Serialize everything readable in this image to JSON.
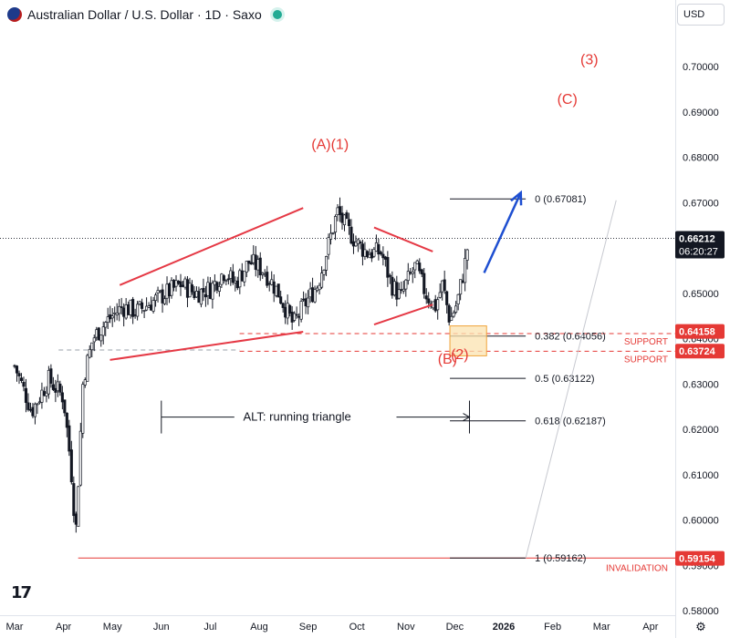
{
  "header": {
    "symbol_title": "Australian Dollar / U.S. Dollar · 1D · Saxo",
    "currency": "USD"
  },
  "icons": {
    "flag": "aud-usd-flag-icon",
    "live": "market-open-dot",
    "settings": "gear-icon",
    "logo": "tradingview-logo"
  },
  "colors": {
    "wave_labels": "#e53935",
    "trendlines": "#e53945",
    "arrow": "#1e4fd1",
    "support": "#e53935",
    "candles": "#131722",
    "last_price": "#131722",
    "box_fill": "#fbe3b0",
    "box_border": "#f0a33a"
  },
  "chart_data": {
    "type": "candlestick",
    "symbol": "Australian Dollar / U.S. Dollar",
    "timeframe": "1D",
    "y_range": [
      0.575,
      0.705
    ],
    "y_ticks": [
      "0.70000",
      "0.69000",
      "0.68000",
      "0.67000",
      "0.66000",
      "0.65000",
      "0.64000",
      "0.63000",
      "0.62000",
      "0.61000",
      "0.60000",
      "0.59000",
      "0.58000"
    ],
    "y_tick_values": [
      0.7,
      0.69,
      0.68,
      0.67,
      0.66,
      0.65,
      0.64,
      0.63,
      0.62,
      0.61,
      0.6,
      0.59,
      0.58
    ],
    "x_ticks": [
      "Mar",
      "Apr",
      "May",
      "Jun",
      "Jul",
      "Aug",
      "Sep",
      "Oct",
      "Nov",
      "Dec",
      "2026",
      "Feb",
      "Mar",
      "Apr"
    ],
    "x_tick_months": [
      2,
      3,
      4,
      5,
      6,
      7,
      8,
      9,
      10,
      11,
      12,
      13,
      14,
      15
    ],
    "last_price": "0.66212",
    "last_price_value": 0.66212,
    "countdown": "06:20:27",
    "price_tags": [
      {
        "text": "0.64158",
        "value": 0.64158
      },
      {
        "text": "0.63724",
        "value": 0.63724
      },
      {
        "text": "0.59154",
        "value": 0.59154
      }
    ],
    "ohlc_anchors": [
      [
        2.0,
        0.634
      ],
      [
        2.35,
        0.624
      ],
      [
        2.7,
        0.631
      ],
      [
        3.0,
        0.627
      ],
      [
        3.15,
        0.612
      ],
      [
        3.25,
        0.597
      ],
      [
        3.4,
        0.631
      ],
      [
        3.6,
        0.64
      ],
      [
        3.9,
        0.644
      ],
      [
        4.2,
        0.647
      ],
      [
        4.5,
        0.646
      ],
      [
        4.8,
        0.648
      ],
      [
        5.1,
        0.65
      ],
      [
        5.4,
        0.652
      ],
      [
        5.7,
        0.65
      ],
      [
        6.0,
        0.651
      ],
      [
        6.3,
        0.655
      ],
      [
        6.5,
        0.652
      ],
      [
        6.8,
        0.657
      ],
      [
        7.1,
        0.655
      ],
      [
        7.4,
        0.65
      ],
      [
        7.7,
        0.643
      ],
      [
        7.9,
        0.647
      ],
      [
        8.2,
        0.652
      ],
      [
        8.4,
        0.66
      ],
      [
        8.6,
        0.668
      ],
      [
        8.75,
        0.665
      ],
      [
        9.0,
        0.661
      ],
      [
        9.2,
        0.659
      ],
      [
        9.5,
        0.659
      ],
      [
        9.7,
        0.652
      ],
      [
        9.9,
        0.649
      ],
      [
        10.0,
        0.652
      ],
      [
        10.2,
        0.656
      ],
      [
        10.4,
        0.65
      ],
      [
        10.6,
        0.647
      ],
      [
        10.75,
        0.652
      ],
      [
        10.9,
        0.644
      ],
      [
        11.05,
        0.648
      ],
      [
        11.2,
        0.656
      ],
      [
        11.3,
        0.663
      ]
    ],
    "fib_levels": [
      {
        "label": "0 (0.67081)",
        "value": 0.67081
      },
      {
        "label": "0.382 (0.64056)",
        "value": 0.64056
      },
      {
        "label": "0.5 (0.63122)",
        "value": 0.63122
      },
      {
        "label": "0.618 (0.62187)",
        "value": 0.62187
      },
      {
        "label": "1 (0.59162)",
        "value": 0.59162
      }
    ],
    "fib_x_range": [
      10.9,
      12.45
    ],
    "invalidation_level": 0.5916,
    "invalidation_label": "INVALIDATION",
    "support_levels": [
      {
        "label": "SUPPORT",
        "value": 0.6411
      },
      {
        "label": "SUPPORT",
        "value": 0.6372
      }
    ],
    "support_x_start": 6.6,
    "gray_level": {
      "value": 0.6375,
      "x_start": 2.9,
      "x_end": 6.6
    },
    "wave_labels": [
      {
        "text": "(A)(1)",
        "x": 8.45,
        "y": 0.6818
      },
      {
        "text": "(3)",
        "x": 13.75,
        "y": 0.7005
      },
      {
        "text": "(C)",
        "x": 13.3,
        "y": 0.6918
      },
      {
        "text": "(B)",
        "x": 10.85,
        "y": 0.6345
      },
      {
        "text": "(2)",
        "x": 11.1,
        "y": 0.6355
      }
    ],
    "trendlines": [
      {
        "from": [
          4.15,
          0.6518
        ],
        "to": [
          7.9,
          0.6688
        ]
      },
      {
        "from": [
          3.95,
          0.6353
        ],
        "to": [
          7.9,
          0.6415
        ]
      },
      {
        "from": [
          9.35,
          0.6645
        ],
        "to": [
          10.55,
          0.6592
        ]
      },
      {
        "from": [
          9.35,
          0.6431
        ],
        "to": [
          10.55,
          0.6475
        ]
      }
    ],
    "arrow": {
      "from": [
        11.6,
        0.6545
      ],
      "to": [
        12.35,
        0.6722
      ]
    },
    "target_box": {
      "x": [
        10.9,
        11.65
      ],
      "y": [
        0.6362,
        0.6428
      ]
    },
    "alt_label": "ALT: running triangle",
    "alt_span": {
      "x": [
        5.0,
        11.3
      ],
      "y": 0.6227
    },
    "projection_line": {
      "from": [
        12.45,
        0.59162
      ],
      "to": [
        14.3,
        0.6705
      ]
    },
    "grid": false
  }
}
